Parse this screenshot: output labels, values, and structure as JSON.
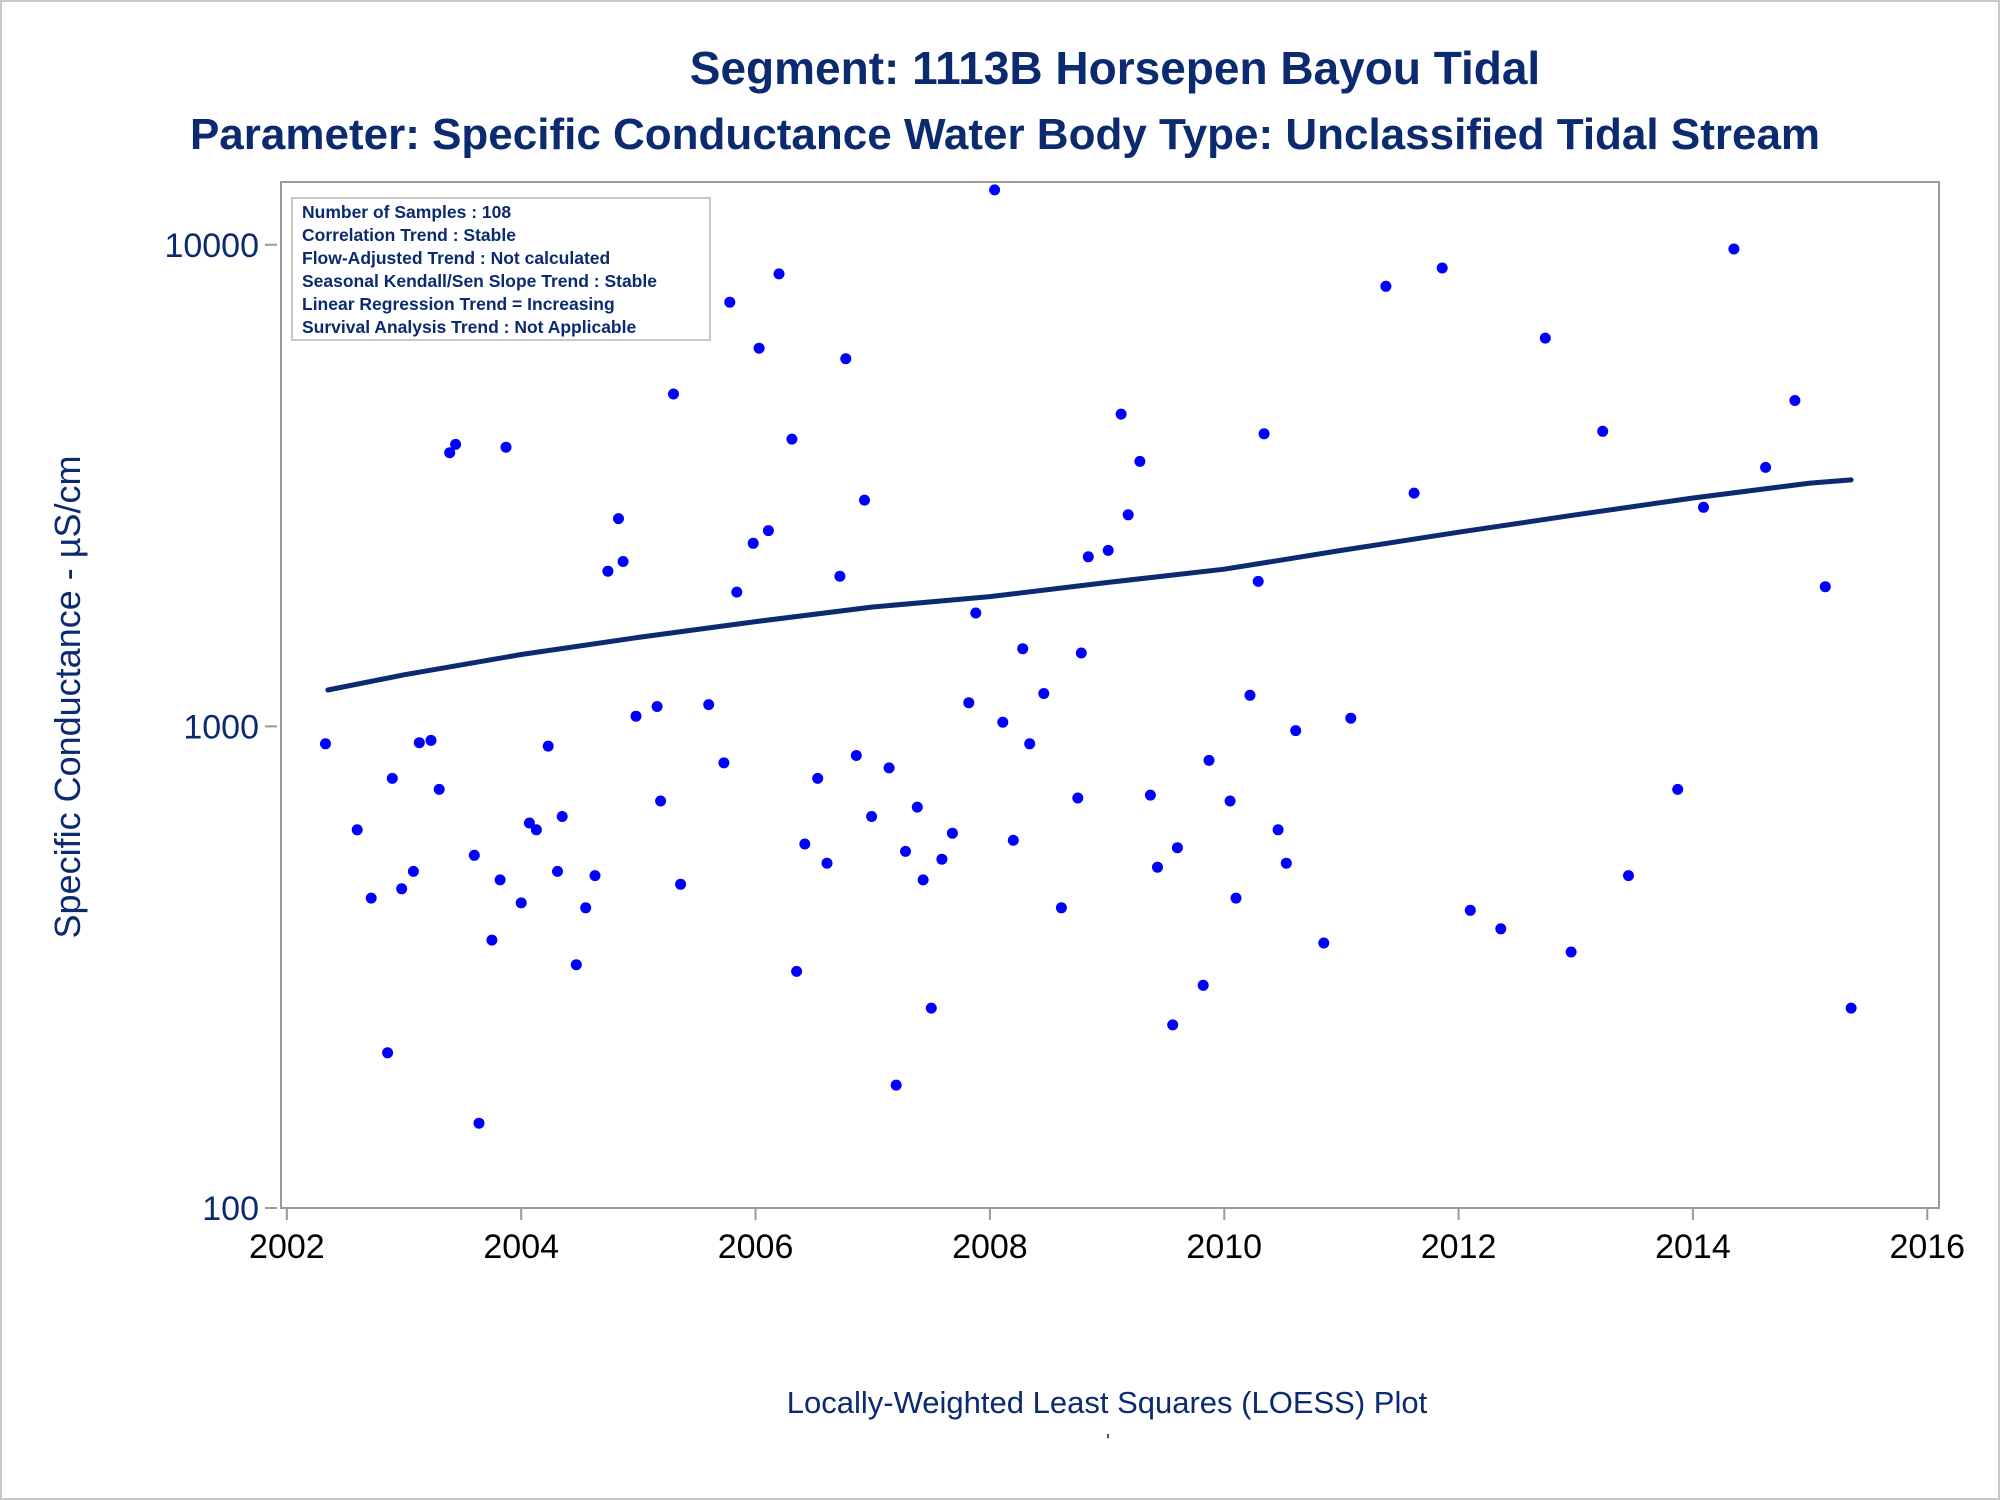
{
  "colors": {
    "text": "#0b2a6f",
    "points": "#0000ff",
    "trend_line": "#0b2a6f",
    "frame": "#9a9a9a",
    "page_border": "#c8c8c8"
  },
  "chart_data": {
    "type": "scatter",
    "title": "Segment: 1113B  Horsepen Bayou Tidal",
    "subtitle": "Parameter: Specific Conductance   Water Body Type: Unclassified Tidal Stream",
    "xlabel": "Locally-Weighted Least Squares (LOESS) Plot",
    "x_footnote": "'",
    "ylabel": "Specific Conductance -  µS/cm",
    "x_scale": "linear",
    "y_scale": "log",
    "xlim": [
      2001.95,
      2016.1
    ],
    "ylim": [
      100,
      13500
    ],
    "x_ticks": [
      2002,
      2004,
      2006,
      2008,
      2010,
      2012,
      2014,
      2016
    ],
    "y_ticks": [
      100,
      1000,
      10000
    ],
    "grid": false,
    "legend_position": "top-left",
    "annotations": [
      "Number of Samples : 108",
      "Correlation Trend : Stable",
      "Flow-Adjusted Trend : Not calculated",
      "Seasonal Kendall/Sen Slope Trend : Stable",
      "Linear Regression Trend = Increasing",
      "Survival Analysis Trend : Not Applicable"
    ],
    "series": [
      {
        "type": "scatter",
        "points": [
          [
            2002.33,
            920
          ],
          [
            2002.6,
            610
          ],
          [
            2002.72,
            440
          ],
          [
            2002.86,
            210
          ],
          [
            2002.9,
            780
          ],
          [
            2002.98,
            460
          ],
          [
            2003.08,
            500
          ],
          [
            2003.13,
            925
          ],
          [
            2003.23,
            935
          ],
          [
            2003.3,
            740
          ],
          [
            2003.39,
            3700
          ],
          [
            2003.44,
            3850
          ],
          [
            2003.6,
            540
          ],
          [
            2003.64,
            150
          ],
          [
            2003.75,
            360
          ],
          [
            2003.82,
            480
          ],
          [
            2003.87,
            3800
          ],
          [
            2004.0,
            430
          ],
          [
            2004.07,
            630
          ],
          [
            2004.13,
            610
          ],
          [
            2004.23,
            910
          ],
          [
            2004.31,
            500
          ],
          [
            2004.35,
            650
          ],
          [
            2004.47,
            320
          ],
          [
            2004.55,
            420
          ],
          [
            2004.63,
            490
          ],
          [
            2004.74,
            2100
          ],
          [
            2004.83,
            2700
          ],
          [
            2004.87,
            2200
          ],
          [
            2004.98,
            1050
          ],
          [
            2005.16,
            1100
          ],
          [
            2005.19,
            700
          ],
          [
            2005.3,
            4900
          ],
          [
            2005.36,
            470
          ],
          [
            2005.6,
            1110
          ],
          [
            2005.73,
            840
          ],
          [
            2005.78,
            7600
          ],
          [
            2005.84,
            1900
          ],
          [
            2005.98,
            2400
          ],
          [
            2006.03,
            6100
          ],
          [
            2006.11,
            2550
          ],
          [
            2006.2,
            8700
          ],
          [
            2006.31,
            3950
          ],
          [
            2006.35,
            310
          ],
          [
            2006.42,
            570
          ],
          [
            2006.53,
            780
          ],
          [
            2006.61,
            520
          ],
          [
            2006.72,
            2050
          ],
          [
            2006.77,
            5800
          ],
          [
            2006.86,
            870
          ],
          [
            2006.93,
            2950
          ],
          [
            2006.99,
            650
          ],
          [
            2007.14,
            820
          ],
          [
            2007.2,
            180
          ],
          [
            2007.28,
            550
          ],
          [
            2007.38,
            680
          ],
          [
            2007.43,
            480
          ],
          [
            2007.5,
            260
          ],
          [
            2007.59,
            530
          ],
          [
            2007.68,
            600
          ],
          [
            2007.82,
            1120
          ],
          [
            2007.88,
            1720
          ],
          [
            2008.04,
            13000
          ],
          [
            2008.11,
            1020
          ],
          [
            2008.2,
            580
          ],
          [
            2008.28,
            1450
          ],
          [
            2008.34,
            920
          ],
          [
            2008.46,
            1170
          ],
          [
            2008.61,
            420
          ],
          [
            2008.75,
            710
          ],
          [
            2008.78,
            1420
          ],
          [
            2008.84,
            2250
          ],
          [
            2009.01,
            2320
          ],
          [
            2009.12,
            4450
          ],
          [
            2009.18,
            2750
          ],
          [
            2009.28,
            3550
          ],
          [
            2009.37,
            720
          ],
          [
            2009.43,
            510
          ],
          [
            2009.56,
            240
          ],
          [
            2009.6,
            560
          ],
          [
            2009.82,
            290
          ],
          [
            2009.87,
            850
          ],
          [
            2010.05,
            700
          ],
          [
            2010.1,
            440
          ],
          [
            2010.22,
            1160
          ],
          [
            2010.29,
            2000
          ],
          [
            2010.34,
            4050
          ],
          [
            2010.46,
            610
          ],
          [
            2010.53,
            520
          ],
          [
            2010.61,
            980
          ],
          [
            2010.85,
            355
          ],
          [
            2011.08,
            1040
          ],
          [
            2011.38,
            8200
          ],
          [
            2011.62,
            3050
          ],
          [
            2011.86,
            8950
          ],
          [
            2012.1,
            415
          ],
          [
            2012.36,
            380
          ],
          [
            2012.74,
            6400
          ],
          [
            2012.96,
            340
          ],
          [
            2013.23,
            4100
          ],
          [
            2013.45,
            490
          ],
          [
            2013.87,
            740
          ],
          [
            2014.09,
            2850
          ],
          [
            2014.35,
            9800
          ],
          [
            2014.62,
            3450
          ],
          [
            2014.87,
            4750
          ],
          [
            2015.13,
            1950
          ],
          [
            2015.35,
            260
          ]
        ]
      },
      {
        "type": "line",
        "name": "LOESS trend",
        "points": [
          [
            2002.35,
            1190
          ],
          [
            2003.0,
            1280
          ],
          [
            2004.0,
            1410
          ],
          [
            2005.0,
            1530
          ],
          [
            2006.0,
            1650
          ],
          [
            2007.0,
            1770
          ],
          [
            2008.0,
            1860
          ],
          [
            2009.0,
            1990
          ],
          [
            2010.0,
            2120
          ],
          [
            2011.0,
            2320
          ],
          [
            2012.0,
            2530
          ],
          [
            2013.0,
            2750
          ],
          [
            2014.0,
            2980
          ],
          [
            2015.0,
            3200
          ],
          [
            2015.35,
            3250
          ]
        ]
      }
    ]
  }
}
